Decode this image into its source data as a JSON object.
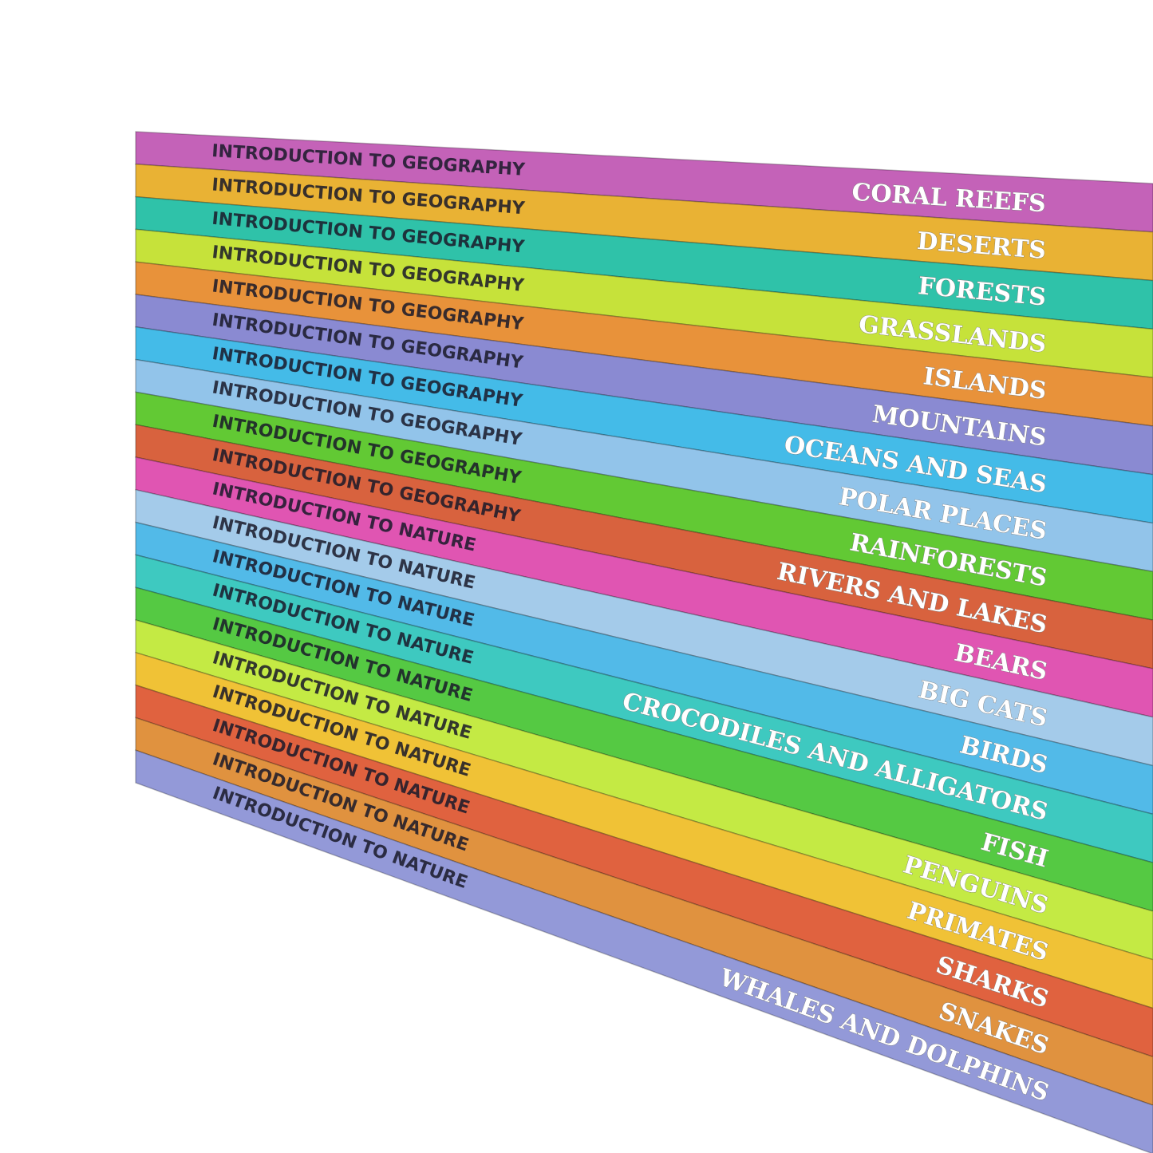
{
  "books": [
    {
      "series": "INTRODUCTION TO GEOGRAPHY",
      "title": "CORAL REEFS",
      "color": "#c462b8"
    },
    {
      "series": "INTRODUCTION TO GEOGRAPHY",
      "title": "DESERTS",
      "color": "#e9b234"
    },
    {
      "series": "INTRODUCTION TO GEOGRAPHY",
      "title": "FORESTS",
      "color": "#2fc2a9"
    },
    {
      "series": "INTRODUCTION TO GEOGRAPHY",
      "title": "GRASSLANDS",
      "color": "#c6e23a"
    },
    {
      "series": "INTRODUCTION TO GEOGRAPHY",
      "title": "ISLANDS",
      "color": "#e8923a"
    },
    {
      "series": "INTRODUCTION TO GEOGRAPHY",
      "title": "MOUNTAINS",
      "color": "#8a8ad2"
    },
    {
      "series": "INTRODUCTION TO GEOGRAPHY",
      "title": "OCEANS AND SEAS",
      "color": "#44bbe8"
    },
    {
      "series": "INTRODUCTION TO GEOGRAPHY",
      "title": "POLAR PLACES",
      "color": "#92c4ea"
    },
    {
      "series": "INTRODUCTION TO GEOGRAPHY",
      "title": "RAINFORESTS",
      "color": "#62c934"
    },
    {
      "series": "INTRODUCTION TO GEOGRAPHY",
      "title": "RIVERS AND LAKES",
      "color": "#d8623e"
    },
    {
      "series": "INTRODUCTION TO NATURE",
      "title": "BEARS",
      "color": "#e055b2"
    },
    {
      "series": "INTRODUCTION TO NATURE",
      "title": "BIG CATS",
      "color": "#a4cbea"
    },
    {
      "series": "INTRODUCTION TO NATURE",
      "title": "BIRDS",
      "color": "#52bae8"
    },
    {
      "series": "INTRODUCTION TO NATURE",
      "title": "CROCODILES AND ALLIGATORS",
      "color": "#3ec9c0"
    },
    {
      "series": "INTRODUCTION TO NATURE",
      "title": "FISH",
      "color": "#55c943"
    },
    {
      "series": "INTRODUCTION TO NATURE",
      "title": "PENGUINS",
      "color": "#c4ea44"
    },
    {
      "series": "INTRODUCTION TO NATURE",
      "title": "PRIMATES",
      "color": "#f0c236"
    },
    {
      "series": "INTRODUCTION TO NATURE",
      "title": "SHARKS",
      "color": "#e0623f"
    },
    {
      "series": "INTRODUCTION TO NATURE",
      "title": "SNAKES",
      "color": "#e0923f"
    },
    {
      "series": "INTRODUCTION TO NATURE",
      "title": "WHALES AND DOLPHINS",
      "color": "#9399d8"
    }
  ]
}
